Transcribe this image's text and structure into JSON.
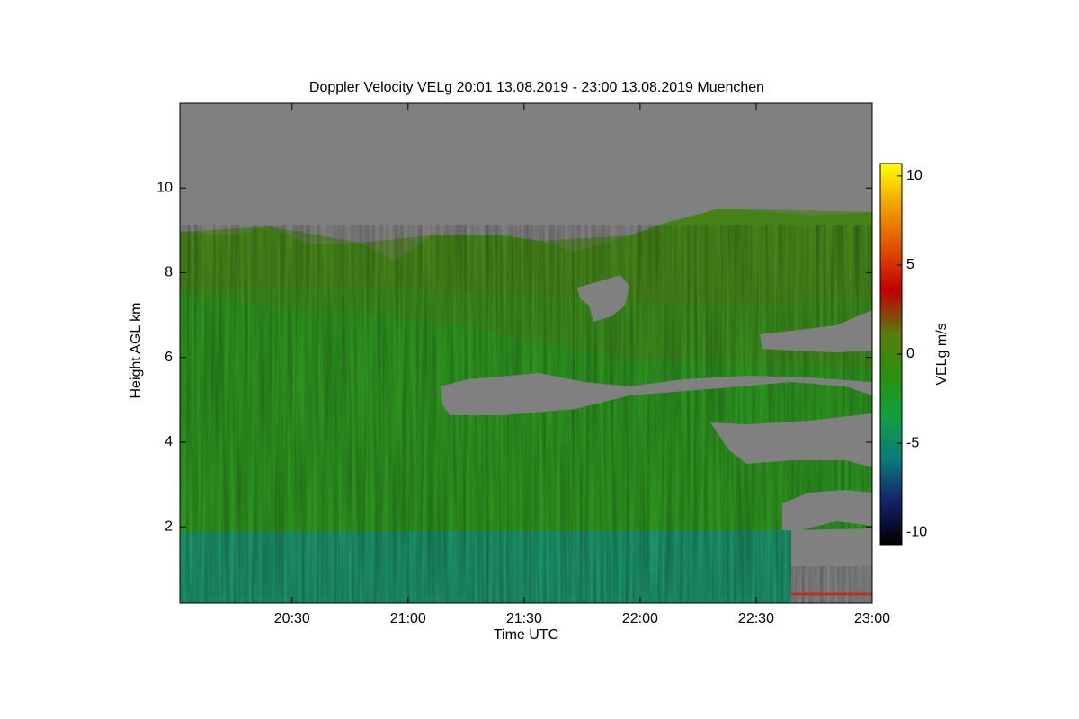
{
  "chart_data": {
    "type": "heatmap",
    "title": "Doppler Velocity VELg   20:01 13.08.2019 - 23:00 13.08.2019 Muenchen",
    "x_label": "Time UTC",
    "y_label": "Height AGL km",
    "xlim": [
      "20:01",
      "23:00"
    ],
    "xticks": [
      "20:30",
      "21:00",
      "21:30",
      "22:00",
      "22:30",
      "23:00"
    ],
    "ylim": [
      0.2,
      12
    ],
    "yticks": [
      2,
      4,
      6,
      8,
      10
    ],
    "colorbar_label": "VELg m/s",
    "zlim": [
      -10.7,
      10.7
    ],
    "zticks": [
      -10,
      -5,
      0,
      5,
      10
    ],
    "colorscale": [
      "#000000",
      "#14206a",
      "#0a7a7a",
      "#10a040",
      "#2a9010",
      "#5a7a10",
      "#c00000",
      "#e05000",
      "#f0a000",
      "#ffff00"
    ]
  }
}
